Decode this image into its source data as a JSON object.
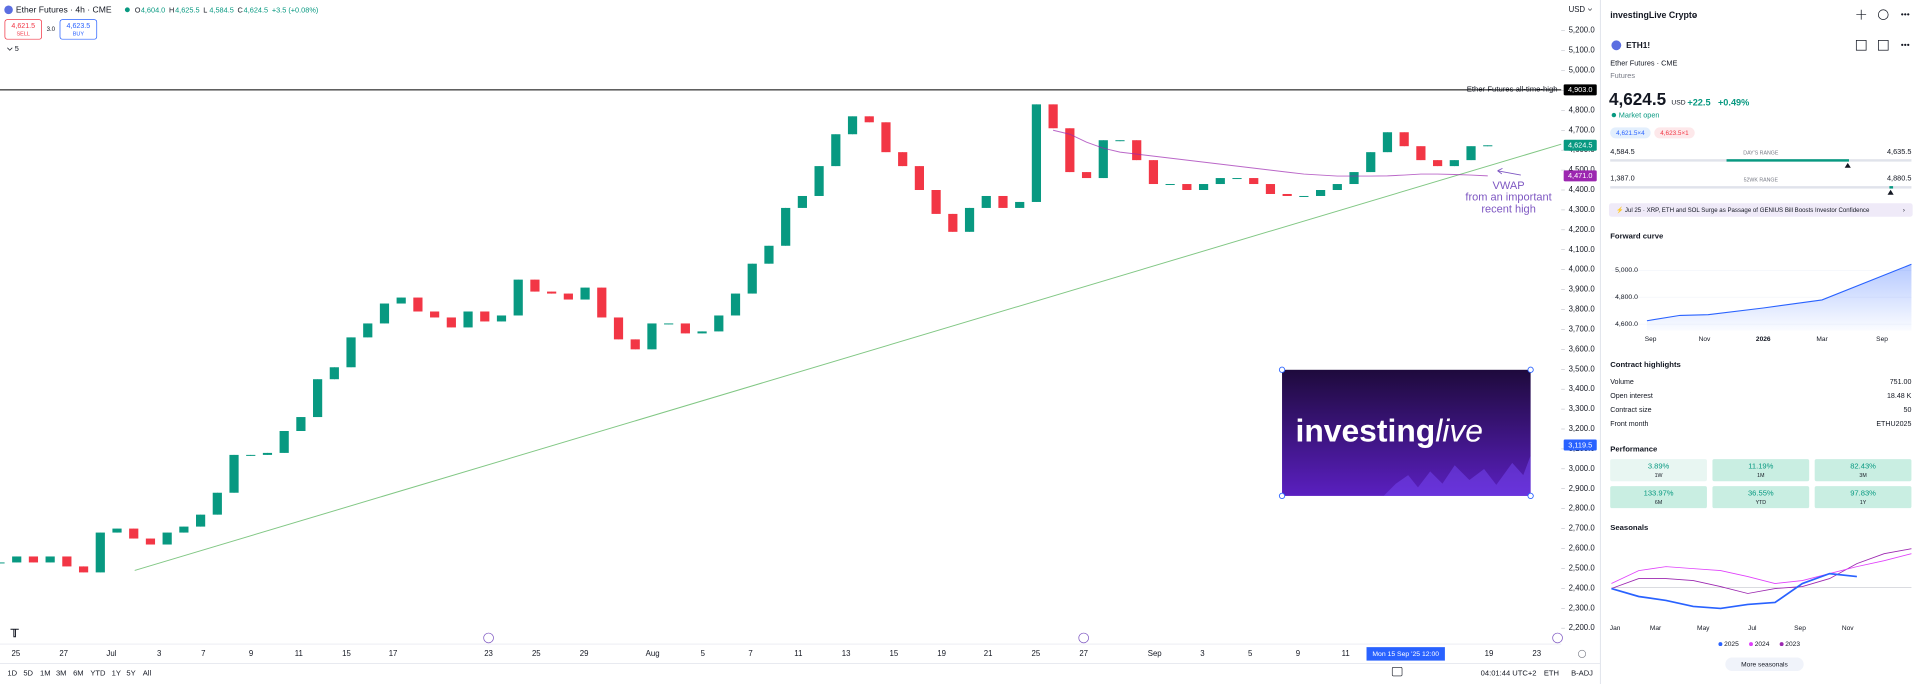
{
  "header": {
    "symbol": "Ether Futures · 4h · CME",
    "ohlc": [
      {
        "label": "O",
        "value": "4,604.0"
      },
      {
        "label": "H",
        "value": "4,625.5"
      },
      {
        "label": "L",
        "value": "4,584.5"
      },
      {
        "label": "C",
        "value": "4,624.5"
      }
    ],
    "change": "+3.5 (+0.08%)",
    "sell": {
      "price": "4,621.5",
      "label": "SELL"
    },
    "spread": "3.0",
    "buy": {
      "price": "4,623.5",
      "label": "BUY"
    },
    "indicators": "5"
  },
  "chart_data": {
    "type": "candlestick",
    "currency": "USD",
    "closes": [
      2530,
      2560,
      2530,
      2560,
      2510,
      2480,
      2680,
      2700,
      2650,
      2620,
      2680,
      2710,
      2770,
      2880,
      3070,
      3070,
      3080,
      3190,
      3260,
      3450,
      3510,
      3660,
      3730,
      3830,
      3860,
      3790,
      3760,
      3710,
      3790,
      3740,
      3770,
      3950,
      3890,
      3880,
      3850,
      3910,
      3760,
      3650,
      3600,
      3730,
      3730,
      3680,
      3690,
      3770,
      3880,
      4030,
      4120,
      4310,
      4370,
      4520,
      4680,
      4770,
      4740,
      4590,
      4520,
      4400,
      4280,
      4190,
      4310,
      4370,
      4310,
      4340,
      4830,
      4710,
      4490,
      4460,
      4650,
      4650,
      4550,
      4430,
      4430,
      4400,
      4430,
      4460,
      4460,
      4430,
      4380,
      4370,
      4370,
      4400,
      4430,
      4490,
      4590,
      4690,
      4620,
      4550,
      4520,
      4550,
      4620,
      4624.5
    ],
    "vwap": [
      null,
      null,
      null,
      null,
      null,
      null,
      null,
      null,
      null,
      null,
      null,
      null,
      null,
      null,
      null,
      null,
      null,
      null,
      null,
      null,
      null,
      null,
      null,
      null,
      null,
      null,
      null,
      null,
      null,
      null,
      null,
      null,
      null,
      null,
      null,
      null,
      null,
      null,
      null,
      null,
      null,
      null,
      null,
      null,
      null,
      null,
      null,
      null,
      null,
      null,
      null,
      null,
      null,
      null,
      null,
      null,
      null,
      null,
      null,
      null,
      null,
      null,
      null,
      4700,
      4680,
      4640,
      4610,
      4590,
      4580,
      4570,
      4560,
      4550,
      4540,
      4530,
      4520,
      4510,
      4500,
      4490,
      4480,
      4475,
      4470,
      4470,
      4470,
      4471,
      4475,
      4480,
      4480,
      4478,
      4475,
      4471
    ],
    "up_color": "#089981",
    "down_color": "#f23645",
    "vwap_color": "#9c27b0",
    "ylim": [
      2157,
      5354
    ],
    "yticks": [
      {
        "value": 2200,
        "label": "2,200.0"
      },
      {
        "value": 2300,
        "label": "2,300.0"
      },
      {
        "value": 2400,
        "label": "2,400.0"
      },
      {
        "value": 2500,
        "label": "2,500.0"
      },
      {
        "value": 2600,
        "label": "2,600.0"
      },
      {
        "value": 2700,
        "label": "2,700.0"
      },
      {
        "value": 2800,
        "label": "2,800.0"
      },
      {
        "value": 2900,
        "label": "2,900.0"
      },
      {
        "value": 3000,
        "label": "3,000.0"
      },
      {
        "value": 3100,
        "label": "3,100.0"
      },
      {
        "value": 3200,
        "label": "3,200.0"
      },
      {
        "value": 3300,
        "label": "3,300.0"
      },
      {
        "value": 3400,
        "label": "3,400.0"
      },
      {
        "value": 3500,
        "label": "3,500.0"
      },
      {
        "value": 3600,
        "label": "3,600.0"
      },
      {
        "value": 3700,
        "label": "3,700.0"
      },
      {
        "value": 3800,
        "label": "3,800.0"
      },
      {
        "value": 3900,
        "label": "3,900.0"
      },
      {
        "value": 4000,
        "label": "4,000.0"
      },
      {
        "value": 4100,
        "label": "4,100.0"
      },
      {
        "value": 4200,
        "label": "4,200.0"
      },
      {
        "value": 4300,
        "label": "4,300.0"
      },
      {
        "value": 4400,
        "label": "4,400.0"
      },
      {
        "value": 4500,
        "label": "4,500.0"
      },
      {
        "value": 4600,
        "label": "4,600.0"
      },
      {
        "value": 4700,
        "label": "4,700.0"
      },
      {
        "value": 4800,
        "label": "4,800.0"
      },
      {
        "value": 4900,
        "label": "4,900.0"
      },
      {
        "value": 5000,
        "label": "5,000.0"
      },
      {
        "value": 5100,
        "label": "5,100.0"
      },
      {
        "value": 5200,
        "label": "5,200.0"
      }
    ],
    "x_labels": [
      "25",
      "27",
      "Jul",
      "3",
      "7",
      "9",
      "11",
      "15",
      "17",
      "23",
      "25",
      "29",
      "Aug",
      "5",
      "7",
      "11",
      "13",
      "15",
      "19",
      "21",
      "25",
      "27",
      "Sep",
      "3",
      "5",
      "9",
      "11",
      "19",
      "23"
    ],
    "crosshair_label": "Mon 15 Sep '25 12:00",
    "hline": {
      "value": 4903,
      "label": "Ether Futures all-time-high",
      "color": "#000000"
    },
    "trendline": {
      "values": [
        2490,
        4630
      ],
      "color": "#81c784"
    },
    "price_tags": [
      {
        "value": 4903,
        "label": "4,903.0",
        "color": "#000000"
      },
      {
        "value": 4624.5,
        "label": "4,624.5",
        "color": "#089981"
      },
      {
        "value": 4471,
        "label": "4,471.0",
        "color": "#9c27b0"
      },
      {
        "value": 3119.5,
        "label": "3,119.5",
        "color": "#2962ff"
      }
    ],
    "annotation": [
      "VWAP",
      "from an important",
      "recent high"
    ],
    "logo": {
      "word": "investing",
      "accent": "live"
    }
  },
  "toolbar": {
    "ranges": [
      "1D",
      "5D",
      "1M",
      "3M",
      "6M",
      "YTD",
      "1Y",
      "5Y",
      "All"
    ],
    "clock": "04:01:44 UTC+2",
    "session": "ETH",
    "adjust": "B-ADJ"
  },
  "panel": {
    "title": "investingLive Crypto",
    "symbol": "ETH1!",
    "exchange": "Ether Futures · CME",
    "kind": "Futures",
    "price": "4,624.5",
    "currency": "USD",
    "change": "+22.5",
    "change_pct": "+0.49%",
    "status": "Market open",
    "bid": "4,621.5×4",
    "ask": "4,623.5×1",
    "day_range": {
      "low": "4,584.5",
      "label": "DAY'S RANGE",
      "high": "4,635.5"
    },
    "year_range": {
      "low": "1,387.0",
      "label": "52WK RANGE",
      "high": "4,880.5"
    },
    "news": "Jul 25 · XRP, ETH and SOL Surge as Passage of GENIUS Bill Boosts Investor Confidence",
    "forward_curve": {
      "title": "Forward curve",
      "type": "area",
      "color": "#2962ff",
      "values": [
        4625,
        4665,
        4670,
        4720,
        4780,
        5045
      ],
      "ylim": [
        4570,
        5080
      ],
      "yticks": [
        {
          "value": 4600,
          "label": "4,600.0"
        },
        {
          "value": 4800,
          "label": "4,800.0"
        },
        {
          "value": 5000,
          "label": "5,000.0"
        }
      ],
      "x_labels": [
        "Sep",
        "Nov",
        "2026",
        "Mar",
        "Sep"
      ]
    },
    "contract_title": "Contract highlights",
    "contract": [
      {
        "label": "Volume",
        "value": "751.00"
      },
      {
        "label": "Open interest",
        "value": "18.48 K"
      },
      {
        "label": "Contract size",
        "value": "50"
      },
      {
        "label": "Front month",
        "value": "ETHU2025"
      }
    ],
    "performance_title": "Performance",
    "performance": [
      {
        "value": "3.89%",
        "period": "1W"
      },
      {
        "value": "11.19%",
        "period": "1M"
      },
      {
        "value": "82.43%",
        "period": "3M"
      },
      {
        "value": "133.97%",
        "period": "6M"
      },
      {
        "value": "36.55%",
        "period": "YTD"
      },
      {
        "value": "97.83%",
        "period": "1Y"
      }
    ],
    "seasonals": {
      "title": "Seasonals",
      "type": "line",
      "ylim": [
        -30,
        50
      ],
      "x_labels": [
        "Jan",
        "Mar",
        "May",
        "Jul",
        "Sep",
        "Nov"
      ],
      "series": [
        {
          "name": "2025",
          "color": "#2962ff",
          "values": [
            0,
            -8,
            -12,
            -18,
            -20,
            -16,
            -14,
            5,
            15,
            12
          ]
        },
        {
          "name": "2024",
          "color": "#e040fb",
          "values": [
            5,
            18,
            22,
            20,
            18,
            12,
            5,
            8,
            15,
            22,
            28,
            35
          ]
        },
        {
          "name": "2023",
          "color": "#9c27b0",
          "values": [
            0,
            10,
            10,
            8,
            2,
            -5,
            0,
            2,
            10,
            25,
            35,
            40
          ]
        }
      ],
      "button": "More seasonals"
    }
  }
}
